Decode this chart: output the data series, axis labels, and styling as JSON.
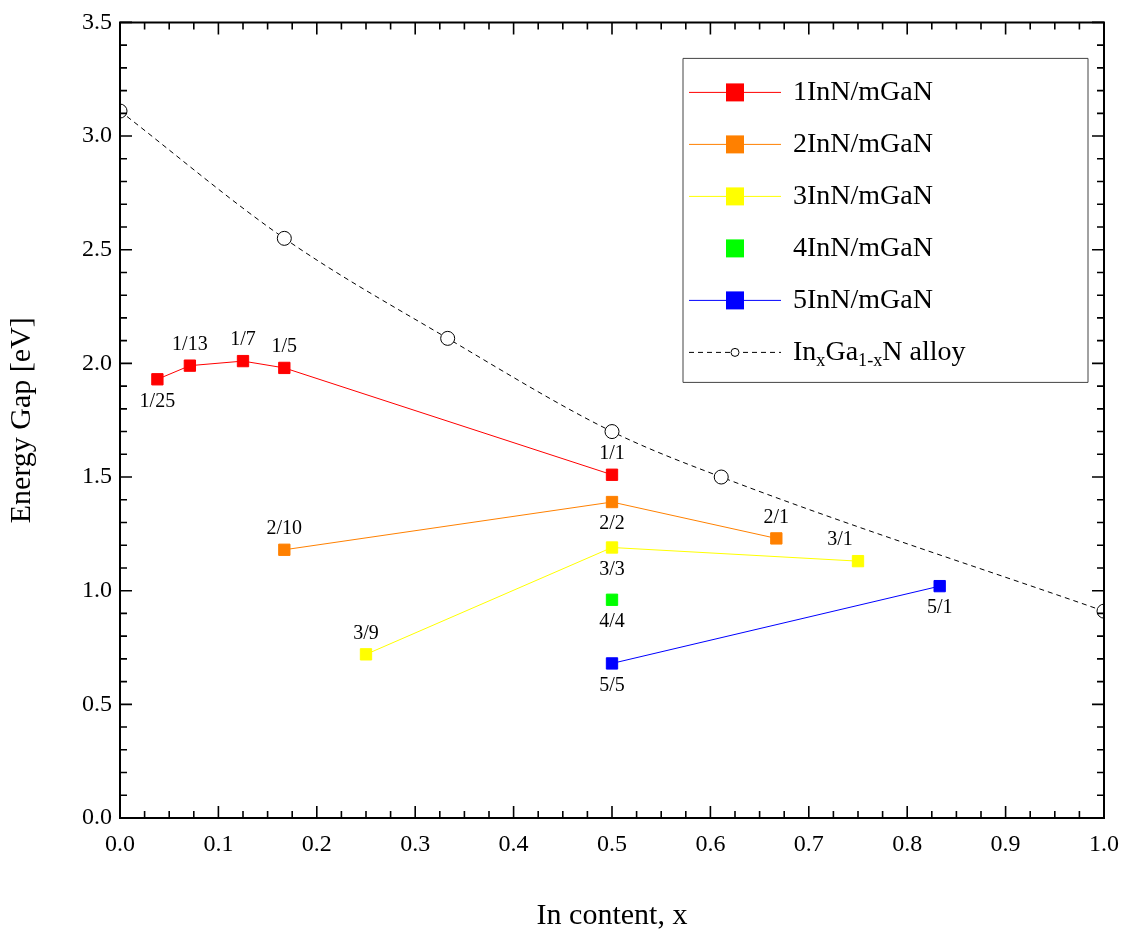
{
  "chart_data": {
    "type": "line",
    "xlabel": "In content, x",
    "ylabel": "Energy Gap [eV]",
    "xlim": [
      0,
      1
    ],
    "ylim": [
      0,
      3.5
    ],
    "xticks": [
      {
        "value": 0,
        "label": "0.0"
      },
      {
        "value": 0.025,
        "label": null
      },
      {
        "value": 0.05,
        "label": null
      },
      {
        "value": 0.075,
        "label": null
      },
      {
        "value": 0.1,
        "label": "0.1"
      },
      {
        "value": 0.125,
        "label": null
      },
      {
        "value": 0.15,
        "label": null
      },
      {
        "value": 0.175,
        "label": null
      },
      {
        "value": 0.2,
        "label": "0.2"
      },
      {
        "value": 0.225,
        "label": null
      },
      {
        "value": 0.25,
        "label": null
      },
      {
        "value": 0.275,
        "label": null
      },
      {
        "value": 0.3,
        "label": "0.3"
      },
      {
        "value": 0.325,
        "label": null
      },
      {
        "value": 0.35,
        "label": null
      },
      {
        "value": 0.375,
        "label": null
      },
      {
        "value": 0.4,
        "label": "0.4"
      },
      {
        "value": 0.425,
        "label": null
      },
      {
        "value": 0.45,
        "label": null
      },
      {
        "value": 0.475,
        "label": null
      },
      {
        "value": 0.5,
        "label": "0.5"
      },
      {
        "value": 0.525,
        "label": null
      },
      {
        "value": 0.55,
        "label": null
      },
      {
        "value": 0.575,
        "label": null
      },
      {
        "value": 0.6,
        "label": "0.6"
      },
      {
        "value": 0.625,
        "label": null
      },
      {
        "value": 0.65,
        "label": null
      },
      {
        "value": 0.675,
        "label": null
      },
      {
        "value": 0.7,
        "label": "0.7"
      },
      {
        "value": 0.725,
        "label": null
      },
      {
        "value": 0.75,
        "label": null
      },
      {
        "value": 0.775,
        "label": null
      },
      {
        "value": 0.8,
        "label": "0.8"
      },
      {
        "value": 0.825,
        "label": null
      },
      {
        "value": 0.85,
        "label": null
      },
      {
        "value": 0.875,
        "label": null
      },
      {
        "value": 0.9,
        "label": "0.9"
      },
      {
        "value": 0.925,
        "label": null
      },
      {
        "value": 0.95,
        "label": null
      },
      {
        "value": 0.975,
        "label": null
      },
      {
        "value": 1,
        "label": "1.0"
      }
    ],
    "yticks": [
      {
        "value": 0,
        "label": "0.0"
      },
      {
        "value": 0.1,
        "label": null
      },
      {
        "value": 0.2,
        "label": null
      },
      {
        "value": 0.3,
        "label": null
      },
      {
        "value": 0.4,
        "label": null
      },
      {
        "value": 0.5,
        "label": "0.5"
      },
      {
        "value": 0.6,
        "label": null
      },
      {
        "value": 0.7,
        "label": null
      },
      {
        "value": 0.8,
        "label": null
      },
      {
        "value": 0.9,
        "label": null
      },
      {
        "value": 1,
        "label": "1.0"
      },
      {
        "value": 1.1,
        "label": null
      },
      {
        "value": 1.2,
        "label": null
      },
      {
        "value": 1.3,
        "label": null
      },
      {
        "value": 1.4,
        "label": null
      },
      {
        "value": 1.5,
        "label": "1.5"
      },
      {
        "value": 1.6,
        "label": null
      },
      {
        "value": 1.7,
        "label": null
      },
      {
        "value": 1.8,
        "label": null
      },
      {
        "value": 1.9,
        "label": null
      },
      {
        "value": 2,
        "label": "2.0"
      },
      {
        "value": 2.1,
        "label": null
      },
      {
        "value": 2.2,
        "label": null
      },
      {
        "value": 2.3,
        "label": null
      },
      {
        "value": 2.4,
        "label": null
      },
      {
        "value": 2.5,
        "label": "2.5"
      },
      {
        "value": 2.6,
        "label": null
      },
      {
        "value": 2.7,
        "label": null
      },
      {
        "value": 2.8,
        "label": null
      },
      {
        "value": 2.9,
        "label": null
      },
      {
        "value": 3,
        "label": "3.0"
      },
      {
        "value": 3.1,
        "label": null
      },
      {
        "value": 3.2,
        "label": null
      },
      {
        "value": 3.3,
        "label": null
      },
      {
        "value": 3.4,
        "label": null
      },
      {
        "value": 3.5,
        "label": "3.5"
      }
    ],
    "series": [
      {
        "name": "1InN/mGaN",
        "color": "#ff0000",
        "type": "line",
        "marker": "square",
        "x": [
          0.038,
          0.071,
          0.125,
          0.167,
          0.5
        ],
        "values": [
          1.93,
          1.99,
          2.01,
          1.98,
          1.51
        ]
      },
      {
        "name": "2InN/mGaN",
        "color": "#ff8000",
        "type": "line",
        "marker": "square",
        "x": [
          0.167,
          0.5,
          0.667
        ],
        "values": [
          1.18,
          1.39,
          1.23
        ]
      },
      {
        "name": "3InN/mGaN",
        "color": "#ffff00",
        "type": "line",
        "marker": "square",
        "x": [
          0.25,
          0.5,
          0.75
        ],
        "values": [
          0.72,
          1.19,
          1.13
        ]
      },
      {
        "name": "4InN/mGaN",
        "color": "#00ff00",
        "type": "scatter",
        "marker": "square",
        "x": [
          0.5
        ],
        "values": [
          0.96
        ]
      },
      {
        "name": "5InN/mGaN",
        "color": "#0000ff",
        "type": "line",
        "marker": "square",
        "x": [
          0.5,
          0.833
        ],
        "values": [
          0.68,
          1.02
        ]
      },
      {
        "name": "In$_{x}$Ga$_{1-x}$N alloy",
        "color": "#000000",
        "type": "line",
        "marker": "circle",
        "line_style": "dashed",
        "x": [
          0,
          0.167,
          0.333,
          0.5,
          0.611,
          1
        ],
        "values": [
          3.11,
          2.55,
          2.11,
          1.7,
          1.5,
          0.91
        ]
      }
    ],
    "annotations": [
      {
        "text": "1/25",
        "x": 0.038,
        "y": 1.93
      },
      {
        "text": "1/13",
        "x": 0.071,
        "y": 1.99
      },
      {
        "text": "1/7",
        "x": 0.125,
        "y": 2.01
      },
      {
        "text": "1/5",
        "x": 0.167,
        "y": 1.98
      },
      {
        "text": "1/1",
        "x": 0.5,
        "y": 1.51
      },
      {
        "text": "2/10",
        "x": 0.167,
        "y": 1.18
      },
      {
        "text": "2/2",
        "x": 0.5,
        "y": 1.39
      },
      {
        "text": "2/1",
        "x": 0.667,
        "y": 1.23
      },
      {
        "text": "3/9",
        "x": 0.25,
        "y": 0.72
      },
      {
        "text": "3/3",
        "x": 0.5,
        "y": 1.19
      },
      {
        "text": "3/1",
        "x": 0.75,
        "y": 1.13
      },
      {
        "text": "4/4",
        "x": 0.5,
        "y": 0.96
      },
      {
        "text": "5/5",
        "x": 0.5,
        "y": 0.68
      },
      {
        "text": "5/1",
        "x": 0.833,
        "y": 1.02
      }
    ],
    "legend": "top right",
    "grid": false
  }
}
